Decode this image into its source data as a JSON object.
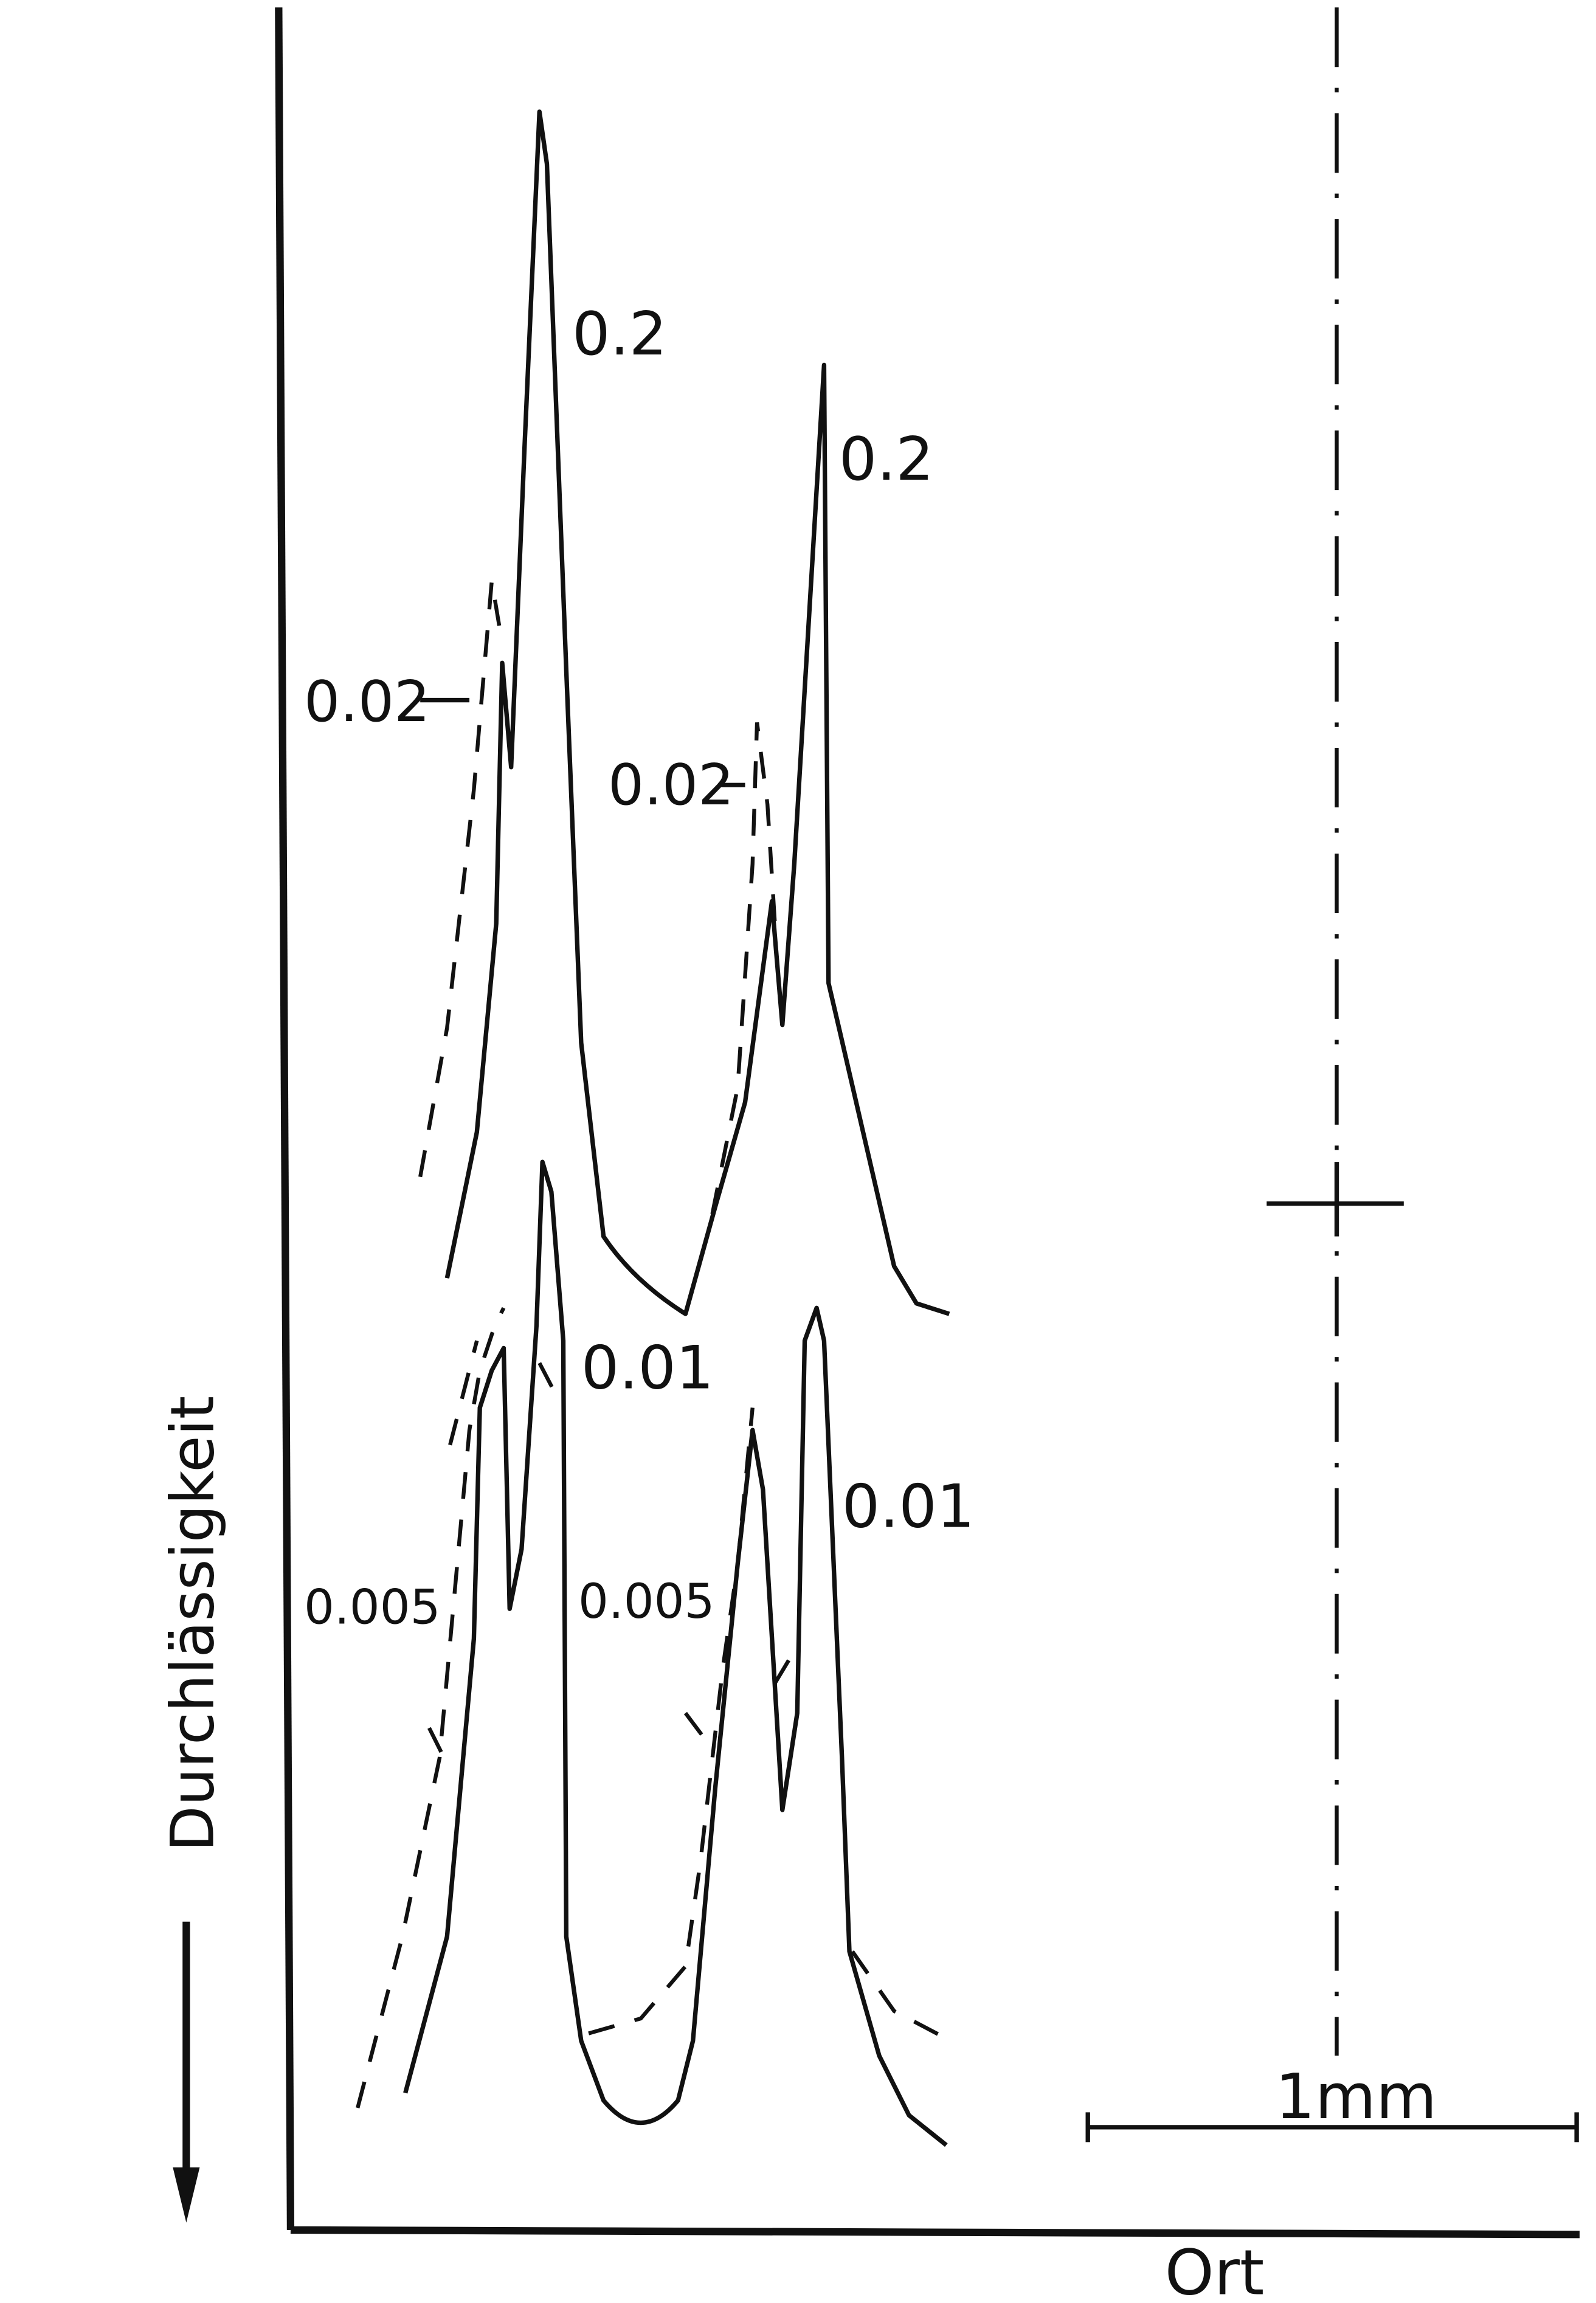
{
  "axis": {
    "y_label": "Durchlässigkeit",
    "x_label": "Ort"
  },
  "scale_bar": "1mm",
  "curve_labels": [
    "0.2",
    "0.2",
    "0.02",
    "0.02",
    "0.01",
    "0.01",
    "0.005",
    "0.005"
  ]
}
